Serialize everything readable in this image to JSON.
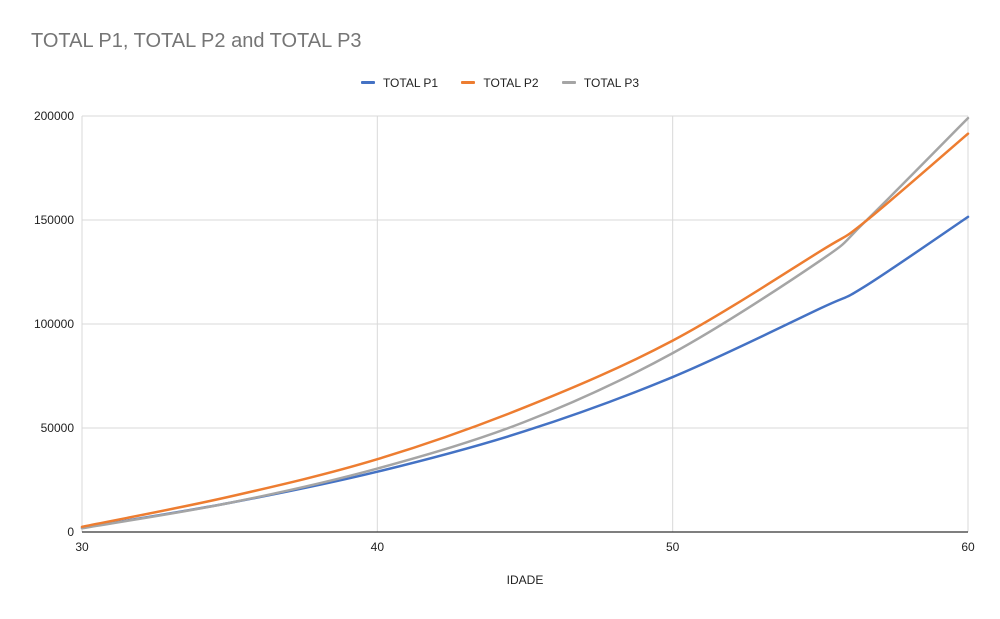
{
  "chart_data": {
    "type": "line",
    "title": "TOTAL P1, TOTAL P2 and TOTAL P3",
    "xlabel": "IDADE",
    "ylabel": "",
    "xlim": [
      30,
      60
    ],
    "ylim": [
      0,
      200000
    ],
    "x_ticks": [
      "30",
      "40",
      "50",
      "60"
    ],
    "y_ticks": [
      "0",
      "50000",
      "100000",
      "150000",
      "200000"
    ],
    "grid": true,
    "legend_position": "top-center",
    "x": [
      30,
      35,
      40,
      45,
      50,
      55,
      56.5,
      60
    ],
    "series": [
      {
        "name": "TOTAL P1",
        "color": "#4472c4",
        "values": [
          2000,
          14000,
          29000,
          48500,
          74500,
          107500,
          118000,
          151500
        ]
      },
      {
        "name": "TOTAL P2",
        "color": "#ed7d31",
        "values": [
          2500,
          17000,
          35000,
          60000,
          92000,
          135000,
          149000,
          191500
        ]
      },
      {
        "name": "TOTAL P3",
        "color": "#a5a5a5",
        "values": [
          1800,
          14000,
          30500,
          53000,
          86000,
          130500,
          149000,
          199000
        ]
      }
    ]
  }
}
